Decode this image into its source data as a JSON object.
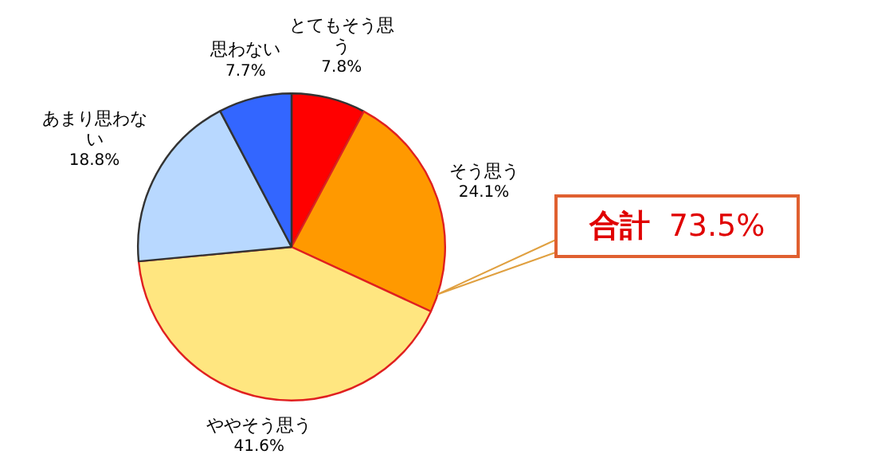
{
  "chart_data": {
    "type": "pie",
    "categories": [
      "とてもそう思う",
      "そう思う",
      "ややそう思う",
      "あまり思わない",
      "思わない"
    ],
    "values": [
      7.8,
      24.1,
      41.6,
      18.8,
      7.7
    ],
    "value_labels": [
      "7.8%",
      "24.1%",
      "41.6%",
      "18.8%",
      "7.7%"
    ],
    "colors": [
      "#ff0000",
      "#ff9900",
      "#ffe680",
      "#b8d8ff",
      "#3366ff"
    ],
    "annotations": [
      "合計 73.5%"
    ],
    "legend": false
  }
}
